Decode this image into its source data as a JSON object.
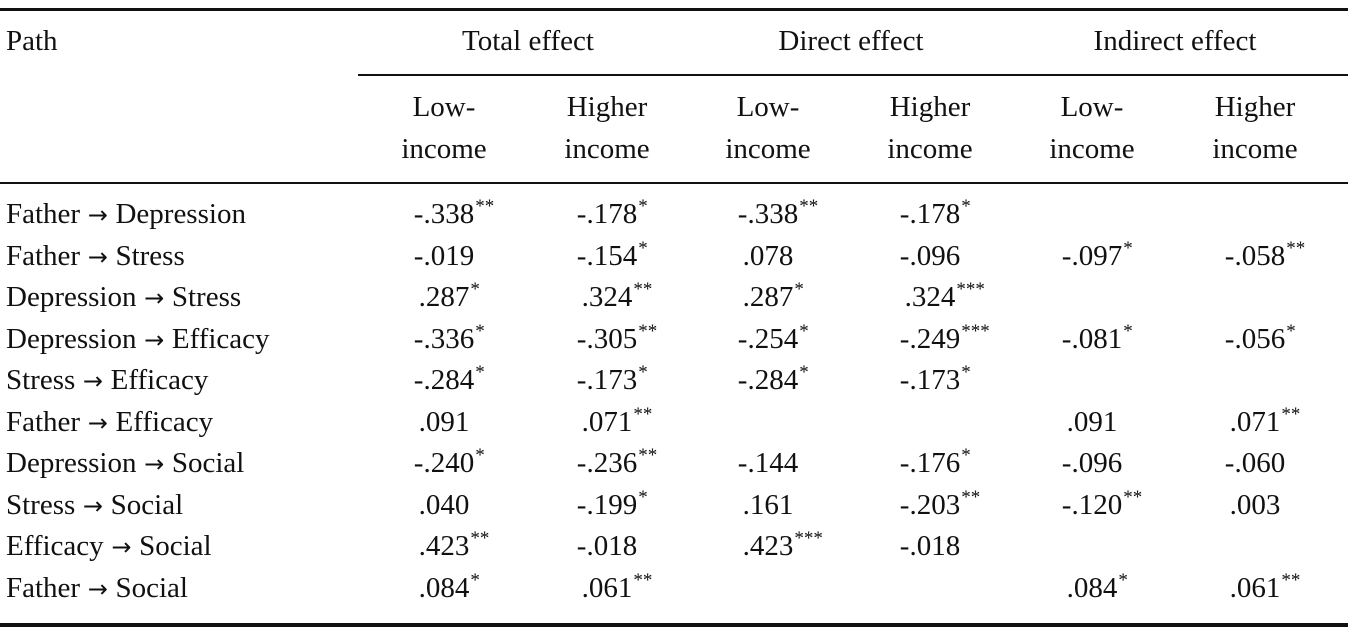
{
  "headers": {
    "path": "Path",
    "groups": [
      "Total effect",
      "Direct effect",
      "Indirect effect"
    ],
    "sub_low": [
      "Low-",
      "income"
    ],
    "sub_high": [
      "Higher",
      "income"
    ]
  },
  "rows": [
    {
      "from": "Father",
      "to": "Depression",
      "cells": [
        {
          "v": "-.338",
          "s": "**"
        },
        {
          "v": "-.178",
          "s": "*"
        },
        {
          "v": "-.338",
          "s": "**"
        },
        {
          "v": "-.178",
          "s": "*"
        },
        null,
        null
      ]
    },
    {
      "from": "Father",
      "to": "Stress",
      "cells": [
        {
          "v": "-.019",
          "s": ""
        },
        {
          "v": "-.154",
          "s": "*"
        },
        {
          "v": ".078",
          "s": ""
        },
        {
          "v": "-.096",
          "s": ""
        },
        {
          "v": "-.097",
          "s": "*"
        },
        {
          "v": "-.058",
          "s": "**"
        }
      ]
    },
    {
      "from": "Depression",
      "to": "Stress",
      "cells": [
        {
          "v": ".287",
          "s": "*"
        },
        {
          "v": ".324",
          "s": "**"
        },
        {
          "v": ".287",
          "s": "*"
        },
        {
          "v": ".324",
          "s": "***"
        },
        null,
        null
      ]
    },
    {
      "from": "Depression",
      "to": "Efficacy",
      "cells": [
        {
          "v": "-.336",
          "s": "*"
        },
        {
          "v": "-.305",
          "s": "**"
        },
        {
          "v": "-.254",
          "s": "*"
        },
        {
          "v": "-.249",
          "s": "***"
        },
        {
          "v": "-.081",
          "s": "*"
        },
        {
          "v": "-.056",
          "s": "*"
        }
      ]
    },
    {
      "from": "Stress",
      "to": "Efficacy",
      "cells": [
        {
          "v": "-.284",
          "s": "*"
        },
        {
          "v": "-.173",
          "s": "*"
        },
        {
          "v": "-.284",
          "s": "*"
        },
        {
          "v": "-.173",
          "s": "*"
        },
        null,
        null
      ]
    },
    {
      "from": "Father",
      "to": "Efficacy",
      "cells": [
        {
          "v": ".091",
          "s": ""
        },
        {
          "v": ".071",
          "s": "**"
        },
        null,
        null,
        {
          "v": ".091",
          "s": ""
        },
        {
          "v": ".071",
          "s": "**"
        }
      ]
    },
    {
      "from": "Depression",
      "to": "Social",
      "cells": [
        {
          "v": "-.240",
          "s": "*"
        },
        {
          "v": "-.236",
          "s": "**"
        },
        {
          "v": "-.144",
          "s": ""
        },
        {
          "v": "-.176",
          "s": "*"
        },
        {
          "v": "-.096",
          "s": ""
        },
        {
          "v": "-.060",
          "s": ""
        }
      ]
    },
    {
      "from": "Stress",
      "to": "Social",
      "cells": [
        {
          "v": ".040",
          "s": ""
        },
        {
          "v": "-.199",
          "s": "*"
        },
        {
          "v": ".161",
          "s": ""
        },
        {
          "v": "-.203",
          "s": "**"
        },
        {
          "v": "-.120",
          "s": "**"
        },
        {
          "v": ".003",
          "s": ""
        }
      ]
    },
    {
      "from": "Efficacy",
      "to": "Social",
      "cells": [
        {
          "v": ".423",
          "s": "**"
        },
        {
          "v": "-.018",
          "s": ""
        },
        {
          "v": ".423",
          "s": "***"
        },
        {
          "v": "-.018",
          "s": ""
        },
        null,
        null
      ]
    },
    {
      "from": "Father",
      "to": "Social",
      "cells": [
        {
          "v": ".084",
          "s": "*"
        },
        {
          "v": ".061",
          "s": "**"
        },
        null,
        null,
        {
          "v": ".084",
          "s": "*"
        },
        {
          "v": ".061",
          "s": "**"
        }
      ]
    }
  ]
}
